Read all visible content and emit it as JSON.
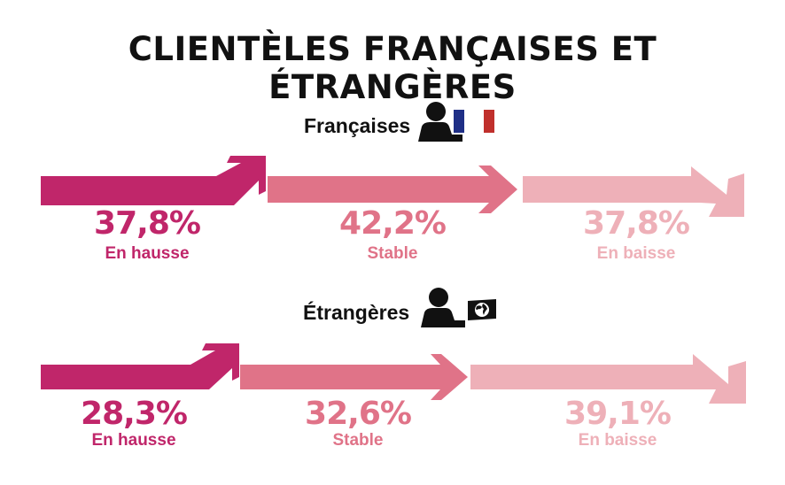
{
  "title": "CLIENTÈLES FRANÇAISES ET ÉTRANGÈRES",
  "colors": {
    "hausse": "#c0266a",
    "stable": "#e07388",
    "baisse": "#eeb0b8",
    "text": "#111111",
    "flag_blue": "#1f2f86",
    "flag_red": "#c0302c"
  },
  "chart_data": [
    {
      "type": "bar",
      "title": "Françaises",
      "categories": [
        "En hausse",
        "Stable",
        "En baisse"
      ],
      "values": [
        37.8,
        42.2,
        37.8
      ],
      "labels": [
        "37,8%",
        "42,2%",
        "37,8%"
      ],
      "icons": [
        "person-icon",
        "french-flag-icon"
      ]
    },
    {
      "type": "bar",
      "title": "Étrangères",
      "categories": [
        "En hausse",
        "Stable",
        "En baisse"
      ],
      "values": [
        28.3,
        32.6,
        39.1
      ],
      "labels": [
        "28,3%",
        "32,6%",
        "39,1%"
      ],
      "icons": [
        "person-icon",
        "globe-icon"
      ]
    }
  ]
}
